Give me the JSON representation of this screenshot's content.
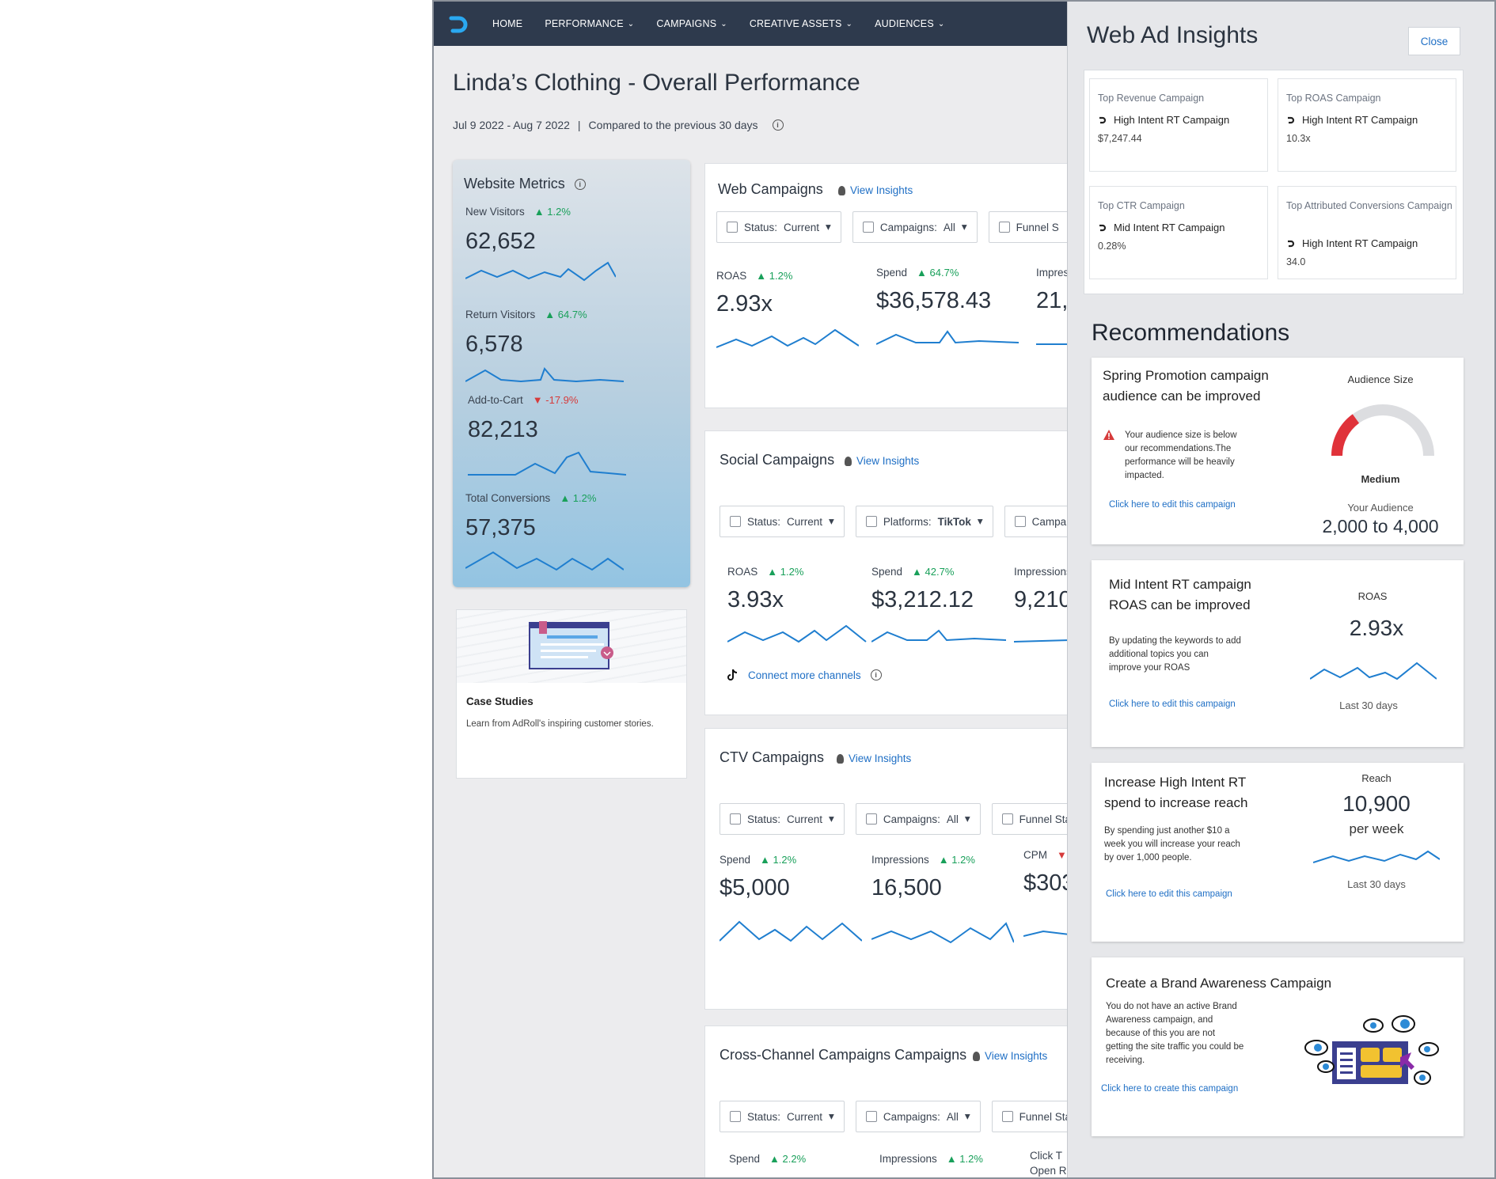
{
  "nav": {
    "items": [
      {
        "label": "HOME",
        "chevron": false
      },
      {
        "label": "PERFORMANCE",
        "chevron": true
      },
      {
        "label": "CAMPAIGNS",
        "chevron": true
      },
      {
        "label": "CREATIVE ASSETS",
        "chevron": true
      },
      {
        "label": "AUDIENCES",
        "chevron": true
      }
    ]
  },
  "page": {
    "title": "Linda’s Clothing - Overall Performance",
    "date_range": "Jul 9 2022 - Aug 7 2022",
    "separator": "|",
    "compared": "Compared to the previous 30 days"
  },
  "website_metrics": {
    "title": "Website Metrics",
    "metrics": [
      {
        "label": "New Visitors",
        "trend": "▲ 1.2%",
        "direction": "up",
        "value": "62,652"
      },
      {
        "label": "Return Visitors",
        "trend": "▲ 64.7%",
        "direction": "up",
        "value": "6,578"
      },
      {
        "label": "Add-to-Cart",
        "trend": "▼ -17.9%",
        "direction": "down",
        "value": "82,213"
      },
      {
        "label": "Total Conversions",
        "trend": "▲ 1.2%",
        "direction": "up",
        "value": "57,375"
      }
    ]
  },
  "case_studies": {
    "title": "Case Studies",
    "text": "Learn from AdRoll's inspiring customer stories."
  },
  "web_campaigns": {
    "title": "Web Campaigns",
    "view_insights": "View Insights",
    "filters": [
      {
        "label": "Status:",
        "value": "Current",
        "caret": "▾"
      },
      {
        "label": "Campaigns:",
        "value": "All",
        "caret": "▾"
      },
      {
        "label": "Funnel S",
        "value": "",
        "caret": ""
      }
    ],
    "stats": [
      {
        "label": "ROAS",
        "trend": "▲ 1.2%",
        "value": "2.93x"
      },
      {
        "label": "Spend",
        "trend": "▲ 64.7%",
        "value": "$36,578.43"
      },
      {
        "label": "Impres",
        "trend": "",
        "value": "21,"
      }
    ]
  },
  "social_campaigns": {
    "title": "Social Campaigns",
    "view_insights": "View Insights",
    "filters": [
      {
        "label": "Status:",
        "value": "Current",
        "caret": "▾"
      },
      {
        "label": "Platforms:",
        "value": "TikTok",
        "caret": "▾"
      },
      {
        "label": "Campaig",
        "value": "",
        "caret": ""
      }
    ],
    "stats": [
      {
        "label": "ROAS",
        "trend": "▲ 1.2%",
        "value": "3.93x"
      },
      {
        "label": "Spend",
        "trend": "▲ 42.7%",
        "value": "$3,212.12"
      },
      {
        "label": "Impressions",
        "trend": "",
        "value": "9,210"
      }
    ],
    "connect": "Connect more channels"
  },
  "ctv_campaigns": {
    "title": "CTV Campaigns",
    "view_insights": "View Insights",
    "filters": [
      {
        "label": "Status:",
        "value": "Current",
        "caret": "▾"
      },
      {
        "label": "Campaigns:",
        "value": "All",
        "caret": "▾"
      },
      {
        "label": "Funnel Stage",
        "value": "",
        "caret": ""
      }
    ],
    "stats": [
      {
        "label": "Spend",
        "trend": "▲ 1.2%",
        "value": "$5,000"
      },
      {
        "label": "Impressions",
        "trend": "▲ 1.2%",
        "value": "16,500"
      },
      {
        "label": "CPM",
        "trend": "▼ -",
        "value": "$303"
      }
    ]
  },
  "cross_channel": {
    "title": "Cross-Channel Campaigns Campaigns",
    "view_insights": "View Insights",
    "filters": [
      {
        "label": "Status:",
        "value": "Current",
        "caret": "▾"
      },
      {
        "label": "Campaigns:",
        "value": "All",
        "caret": "▾"
      },
      {
        "label": "Funnel Stage",
        "value": "",
        "caret": ""
      }
    ],
    "stats": [
      {
        "label": "Spend",
        "trend": "▲ 2.2%"
      },
      {
        "label": "Impressions",
        "trend": "▲ 1.2%"
      },
      {
        "label": "Click T",
        "trend": ""
      },
      {
        "label": "Open R",
        "trend": ""
      }
    ]
  },
  "insights_panel": {
    "title": "Web Ad Insights",
    "close": "Close",
    "tops": [
      {
        "title": "Top Revenue Campaign",
        "name": "High Intent RT Campaign",
        "value": "$7,247.44"
      },
      {
        "title": "Top ROAS Campaign",
        "name": "High Intent RT Campaign",
        "value": "10.3x"
      },
      {
        "title": "Top CTR Campaign",
        "name": "Mid Intent RT Campaign",
        "value": "0.28%"
      },
      {
        "title": "Top Attributed Conversions Campaign",
        "name": "High Intent RT Campaign",
        "value": "34.0"
      }
    ],
    "recommendations_title": "Recommendations",
    "recs": [
      {
        "title_line1": "Spring Promotion campaign",
        "title_line2": "audience can be improved",
        "desc": "Your audience size is below our recommendations.The performance will be heavily impacted.",
        "link": "Click here to edit this campaign",
        "stat_label": "Audience Size",
        "gauge_label": "Medium",
        "gauge_level": 0.3,
        "sub_label": "Your Audience",
        "sub_value": "2,000 to 4,000"
      },
      {
        "title_line1": "Mid Intent RT campaign",
        "title_line2": "ROAS can be improved",
        "desc": "By updating the keywords to add additional topics you can improve your ROAS",
        "link": "Click here to edit this campaign",
        "stat_label": "ROAS",
        "stat_value": "2.93x",
        "period": "Last 30 days"
      },
      {
        "title_line1": "Increase High Intent RT",
        "title_line2": "spend to increase reach",
        "desc": "By spending just another $10 a week you will increase your reach by over 1,000 people.",
        "link": "Click here to edit this campaign",
        "stat_label": "Reach",
        "stat_value": "10,900",
        "stat_unit": "per week",
        "period": "Last 30 days"
      },
      {
        "title_line1": "Create a Brand Awareness Campaign",
        "desc": "You do not have an active Brand Awareness campaign, and because of this you are not getting the site traffic you could be receiving.",
        "link": "Click here to create this campaign"
      }
    ]
  },
  "colors": {
    "nav_bg": "#2e3a4d",
    "accent": "#1f6fc5",
    "up": "#19a05a",
    "down": "#d63b3b",
    "spark": "#1f7ecf",
    "gauge_fill": "#e0323a"
  }
}
